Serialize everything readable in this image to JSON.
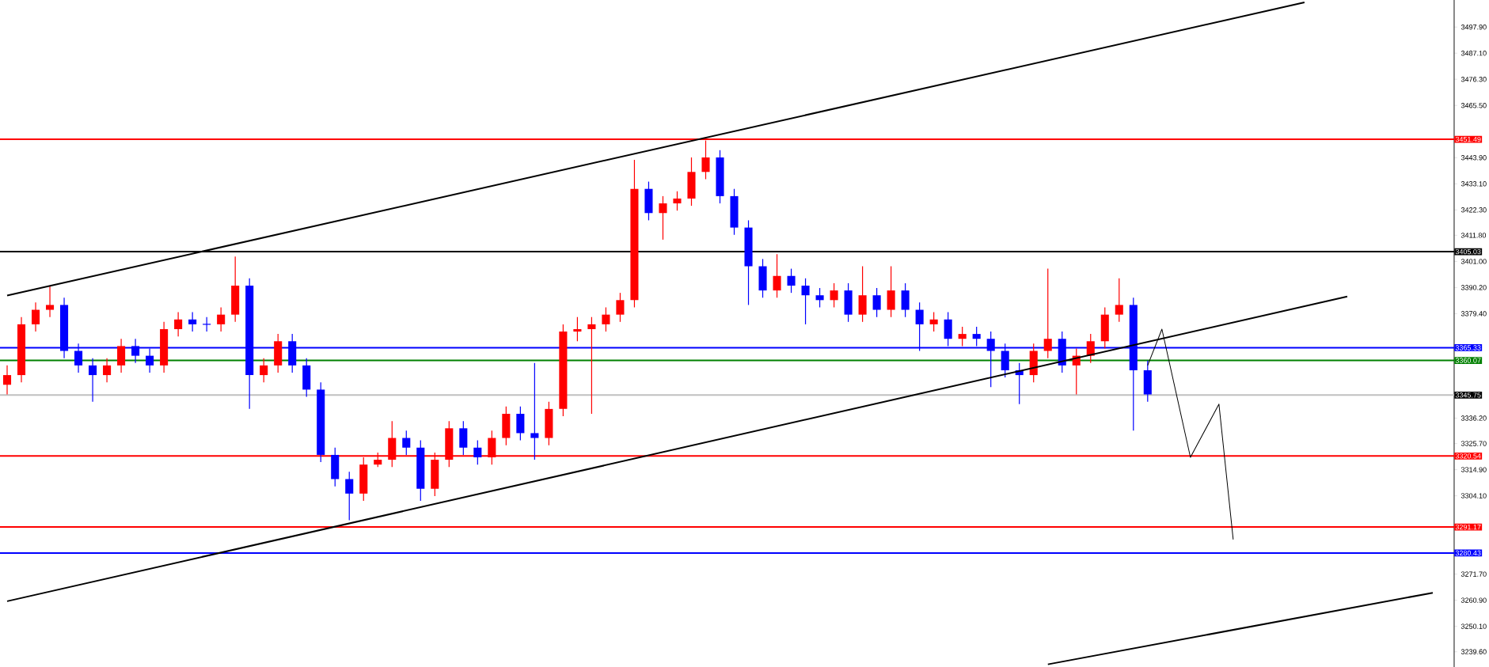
{
  "chart_data": {
    "type": "candlestick",
    "categories": [
      null,
      null,
      null,
      null,
      null,
      null,
      null,
      null,
      null,
      null,
      null,
      null,
      null,
      null,
      null,
      null,
      null,
      null,
      null,
      null,
      null,
      null,
      null,
      null,
      null,
      null,
      null,
      null,
      null,
      null,
      null,
      null,
      null,
      null,
      null,
      null,
      null,
      null,
      null,
      null,
      null,
      null,
      null,
      null,
      null,
      null,
      null,
      null,
      null,
      null,
      null,
      null,
      null,
      null,
      null,
      null,
      null,
      null,
      null,
      null,
      null,
      null,
      null,
      null,
      null,
      null,
      null,
      null,
      null,
      null,
      null,
      null,
      null,
      null,
      null,
      null,
      null,
      null,
      null,
      null,
      null,
      null,
      null,
      null,
      null,
      null,
      null,
      null,
      null,
      null,
      null,
      null,
      null,
      null,
      null,
      null,
      null,
      null,
      null,
      null,
      null,
      null
    ],
    "ohlc": [
      [
        3350,
        3358,
        3346,
        3354
      ],
      [
        3354,
        3378,
        3351,
        3375
      ],
      [
        3375,
        3384,
        3372,
        3381
      ],
      [
        3381,
        3391,
        3378,
        3383
      ],
      [
        3383,
        3386,
        3361,
        3364
      ],
      [
        3364,
        3367,
        3355,
        3358
      ],
      [
        3358,
        3361,
        3343,
        3354
      ],
      [
        3354,
        3361,
        3351,
        3358
      ],
      [
        3358,
        3369,
        3355,
        3366
      ],
      [
        3366,
        3369,
        3359,
        3362
      ],
      [
        3362,
        3365,
        3355,
        3358
      ],
      [
        3358,
        3376,
        3355,
        3373
      ],
      [
        3373,
        3380,
        3370,
        3377
      ],
      [
        3377,
        3380,
        3372,
        3375
      ],
      [
        3375,
        3378,
        3372,
        3375
      ],
      [
        3375,
        3382,
        3372,
        3379
      ],
      [
        3379,
        3403,
        3376,
        3391
      ],
      [
        3391,
        3394,
        3340,
        3354
      ],
      [
        3354,
        3361,
        3351,
        3358
      ],
      [
        3358,
        3371,
        3355,
        3368
      ],
      [
        3368,
        3371,
        3355,
        3358
      ],
      [
        3358,
        3361,
        3345,
        3348
      ],
      [
        3348,
        3351,
        3318,
        3321
      ],
      [
        3321,
        3324,
        3308,
        3311
      ],
      [
        3311,
        3314,
        3294,
        3305
      ],
      [
        3305,
        3320,
        3302,
        3317
      ],
      [
        3317,
        3322,
        3316,
        3319
      ],
      [
        3319,
        3335,
        3316,
        3328
      ],
      [
        3328,
        3331,
        3321,
        3324
      ],
      [
        3324,
        3327,
        3302,
        3307
      ],
      [
        3307,
        3322,
        3304,
        3319
      ],
      [
        3319,
        3335,
        3316,
        3332
      ],
      [
        3332,
        3335,
        3321,
        3324
      ],
      [
        3324,
        3327,
        3317,
        3320
      ],
      [
        3320,
        3331,
        3317,
        3328
      ],
      [
        3328,
        3341,
        3325,
        3338
      ],
      [
        3338,
        3341,
        3327,
        3330
      ],
      [
        3330,
        3359,
        3319,
        3328
      ],
      [
        3328,
        3343,
        3325,
        3340
      ],
      [
        3340,
        3375,
        3337,
        3372
      ],
      [
        3372,
        3378,
        3368,
        3373
      ],
      [
        3373,
        3378,
        3338,
        3375
      ],
      [
        3375,
        3382,
        3372,
        3379
      ],
      [
        3379,
        3388,
        3376,
        3385
      ],
      [
        3385,
        3443,
        3382,
        3431
      ],
      [
        3431,
        3434,
        3418,
        3421
      ],
      [
        3421,
        3428,
        3410,
        3425
      ],
      [
        3425,
        3430,
        3422,
        3427
      ],
      [
        3427,
        3444,
        3424,
        3438
      ],
      [
        3438,
        3451,
        3435,
        3444
      ],
      [
        3444,
        3447,
        3425,
        3428
      ],
      [
        3428,
        3431,
        3412,
        3415
      ],
      [
        3415,
        3418,
        3383,
        3399
      ],
      [
        3399,
        3402,
        3386,
        3389
      ],
      [
        3389,
        3404,
        3386,
        3395
      ],
      [
        3395,
        3398,
        3388,
        3391
      ],
      [
        3391,
        3394,
        3375,
        3387
      ],
      [
        3387,
        3390,
        3382,
        3385
      ],
      [
        3385,
        3392,
        3382,
        3389
      ],
      [
        3389,
        3392,
        3376,
        3379
      ],
      [
        3379,
        3399,
        3376,
        3387
      ],
      [
        3387,
        3390,
        3378,
        3381
      ],
      [
        3381,
        3399,
        3378,
        3389
      ],
      [
        3389,
        3392,
        3378,
        3381
      ],
      [
        3381,
        3384,
        3364,
        3375
      ],
      [
        3375,
        3380,
        3372,
        3377
      ],
      [
        3377,
        3380,
        3366,
        3369
      ],
      [
        3369,
        3374,
        3366,
        3371
      ],
      [
        3371,
        3374,
        3366,
        3369
      ],
      [
        3369,
        3372,
        3349,
        3364
      ],
      [
        3364,
        3367,
        3353,
        3356
      ],
      [
        3356,
        3359,
        3342,
        3354
      ],
      [
        3354,
        3367,
        3351,
        3364
      ],
      [
        3364,
        3398,
        3361,
        3369
      ],
      [
        3369,
        3372,
        3355,
        3358
      ],
      [
        3358,
        3365,
        3346,
        3362
      ],
      [
        3362,
        3371,
        3359,
        3368
      ],
      [
        3368,
        3382,
        3365,
        3379
      ],
      [
        3379,
        3394,
        3376,
        3383
      ],
      [
        3383,
        3386,
        3331,
        3356
      ],
      [
        3356,
        3360,
        3343,
        3346
      ],
      null,
      null,
      null,
      null,
      null,
      null,
      null,
      null,
      null,
      null,
      null,
      null,
      null,
      null,
      null,
      null,
      null,
      null,
      null,
      null,
      null
    ],
    "colors": [
      "#ff0000",
      "#ff0000",
      "#ff0000",
      "#ff0000",
      "#0000ff",
      "#0000ff",
      "#0000ff",
      "#ff0000",
      "#ff0000",
      "#0000ff",
      "#0000ff",
      "#ff0000",
      "#ff0000",
      "#0000ff",
      "#0000ff",
      "#ff0000",
      "#ff0000",
      "#0000ff",
      "#ff0000",
      "#ff0000",
      "#0000ff",
      "#0000ff",
      "#0000ff",
      "#0000ff",
      "#0000ff",
      "#ff0000",
      "#ff0000",
      "#ff0000",
      "#0000ff",
      "#0000ff",
      "#ff0000",
      "#ff0000",
      "#0000ff",
      "#0000ff",
      "#ff0000",
      "#ff0000",
      "#0000ff",
      "#0000ff",
      "#ff0000",
      "#ff0000",
      "#ff0000",
      "#ff0000",
      "#ff0000",
      "#ff0000",
      "#ff0000",
      "#0000ff",
      "#ff0000",
      "#ff0000",
      "#ff0000",
      "#ff0000",
      "#0000ff",
      "#0000ff",
      "#0000ff",
      "#0000ff",
      "#ff0000",
      "#0000ff",
      "#0000ff",
      "#0000ff",
      "#ff0000",
      "#0000ff",
      "#ff0000",
      "#0000ff",
      "#ff0000",
      "#0000ff",
      "#0000ff",
      "#ff0000",
      "#0000ff",
      "#ff0000",
      "#0000ff",
      "#0000ff",
      "#0000ff",
      "#0000ff",
      "#ff0000",
      "#ff0000",
      "#0000ff",
      "#ff0000",
      "#ff0000",
      "#ff0000",
      "#ff0000",
      "#0000ff",
      "#0000ff",
      null,
      null,
      null,
      null,
      null,
      null,
      null,
      null,
      null,
      null,
      null,
      null,
      null,
      null,
      null,
      null,
      null,
      null,
      null,
      null,
      null
    ],
    "series": [
      {
        "type": "line",
        "color": "#000000",
        "values": [
          3386.9,
          null,
          null,
          null,
          null,
          null,
          null,
          null,
          null,
          null,
          null,
          null,
          null,
          null,
          null,
          null,
          null,
          null,
          null,
          null,
          null,
          null,
          null,
          null,
          null,
          null,
          null,
          null,
          null,
          null,
          null,
          null,
          null,
          null,
          null,
          null,
          null,
          null,
          null,
          null,
          null,
          null,
          null,
          null,
          null,
          null,
          null,
          null,
          null,
          null,
          null,
          null,
          null,
          null,
          null,
          null,
          null,
          null,
          null,
          null,
          null,
          null,
          null,
          null,
          null,
          null,
          null,
          null,
          null,
          null,
          null,
          null,
          null,
          null,
          null,
          null,
          null,
          null,
          null,
          null,
          null,
          null,
          null,
          null,
          null,
          null,
          null,
          null,
          null,
          null,
          null,
          3508.1,
          null,
          null,
          null,
          null,
          null,
          null,
          null,
          null,
          null,
          null
        ]
      },
      {
        "type": "line",
        "color": "#000000",
        "values": [
          3260.5,
          null,
          null,
          null,
          null,
          null,
          null,
          null,
          null,
          null,
          null,
          null,
          null,
          null,
          null,
          null,
          null,
          null,
          null,
          null,
          null,
          null,
          null,
          null,
          null,
          null,
          null,
          null,
          null,
          null,
          null,
          null,
          null,
          null,
          null,
          null,
          null,
          null,
          null,
          null,
          null,
          null,
          null,
          null,
          null,
          null,
          null,
          null,
          null,
          null,
          null,
          null,
          null,
          null,
          null,
          null,
          null,
          null,
          null,
          null,
          null,
          null,
          null,
          null,
          null,
          null,
          null,
          null,
          null,
          null,
          null,
          null,
          null,
          null,
          null,
          null,
          null,
          null,
          null,
          null,
          null,
          null,
          null,
          null,
          null,
          null,
          null,
          null,
          null,
          null,
          null,
          null,
          null,
          null,
          3386.5,
          null,
          null,
          null,
          null,
          null,
          null,
          null
        ]
      },
      {
        "type": "line",
        "color": "#000000",
        "values": [
          null,
          null,
          null,
          null,
          null,
          null,
          null,
          null,
          null,
          null,
          null,
          null,
          null,
          null,
          null,
          null,
          null,
          null,
          null,
          null,
          null,
          null,
          null,
          null,
          null,
          null,
          null,
          null,
          null,
          null,
          null,
          null,
          null,
          null,
          null,
          null,
          null,
          null,
          null,
          null,
          null,
          null,
          null,
          null,
          null,
          null,
          null,
          null,
          null,
          null,
          null,
          null,
          null,
          null,
          null,
          null,
          null,
          null,
          null,
          null,
          null,
          null,
          null,
          null,
          null,
          null,
          null,
          null,
          null,
          null,
          null,
          null,
          null,
          3234.4,
          null,
          null,
          null,
          null,
          null,
          null,
          null,
          null,
          null,
          null,
          null,
          null,
          null,
          null,
          null,
          null,
          null,
          null,
          null,
          null,
          null,
          null,
          null,
          null,
          null,
          null,
          3264.0,
          null
        ]
      },
      {
        "type": "line",
        "color": "#000000",
        "values": [
          null,
          null,
          null,
          null,
          null,
          null,
          null,
          null,
          null,
          null,
          null,
          null,
          null,
          null,
          null,
          null,
          null,
          null,
          null,
          null,
          null,
          null,
          null,
          null,
          null,
          null,
          null,
          null,
          null,
          null,
          null,
          null,
          null,
          null,
          null,
          null,
          null,
          null,
          null,
          null,
          null,
          null,
          null,
          null,
          null,
          null,
          null,
          null,
          null,
          null,
          null,
          null,
          null,
          null,
          null,
          null,
          null,
          null,
          null,
          null,
          null,
          null,
          null,
          null,
          null,
          null,
          null,
          null,
          null,
          null,
          null,
          null,
          null,
          null,
          null,
          null,
          null,
          null,
          null,
          null,
          3358,
          3373,
          null,
          3320,
          null,
          3342,
          3286,
          null,
          null,
          null,
          null,
          null,
          null,
          null,
          null,
          null,
          null,
          null,
          null,
          null,
          null,
          null
        ]
      }
    ],
    "ylim": [
      3233.3,
      3509.1
    ],
    "yticks": [
      {
        "value": 3497.9,
        "label": "3497.90"
      },
      {
        "value": 3487.1,
        "label": "3487.10"
      },
      {
        "value": 3476.3,
        "label": "3476.30"
      },
      {
        "value": 3465.5,
        "label": "3465.50"
      },
      {
        "value": 3443.9,
        "label": "3443.90"
      },
      {
        "value": 3433.1,
        "label": "3433.10"
      },
      {
        "value": 3422.3,
        "label": "3422.30"
      },
      {
        "value": 3411.8,
        "label": "3411.80"
      },
      {
        "value": 3401.0,
        "label": "3401.00"
      },
      {
        "value": 3390.2,
        "label": "3390.20"
      },
      {
        "value": 3379.4,
        "label": "3379.40"
      },
      {
        "value": 3336.2,
        "label": "3336.20"
      },
      {
        "value": 3325.7,
        "label": "3325.70"
      },
      {
        "value": 3314.9,
        "label": "3314.90"
      },
      {
        "value": 3304.1,
        "label": "3304.10"
      },
      {
        "value": 3271.7,
        "label": "3271.70"
      },
      {
        "value": 3260.9,
        "label": "3260.90"
      },
      {
        "value": 3250.1,
        "label": "3250.10"
      },
      {
        "value": 3239.6,
        "label": "3239.60"
      }
    ],
    "ref_lines": [
      {
        "axis": "y",
        "value": 3451.49,
        "label": "3451.49",
        "color": "#ff0000"
      },
      {
        "axis": "y",
        "value": 3405.03,
        "label": "3405.03",
        "color": "#000000"
      },
      {
        "axis": "y",
        "value": 3365.33,
        "label": "3365.33",
        "color": "#0000ff"
      },
      {
        "axis": "y",
        "value": 3360.07,
        "label": "3360.07",
        "color": "#008000"
      },
      {
        "axis": "y",
        "value": 3345.75,
        "label": "3345.75",
        "color": "#c0c0c0"
      },
      {
        "axis": "y",
        "value": 3320.54,
        "label": "3320.54",
        "color": "#ff0000"
      },
      {
        "axis": "y",
        "value": 3291.17,
        "label": "3291.17",
        "color": "#ff0000"
      },
      {
        "axis": "y",
        "value": 3280.43,
        "label": "3280.43",
        "color": "#0000ff"
      }
    ],
    "tick_labels": "y"
  }
}
